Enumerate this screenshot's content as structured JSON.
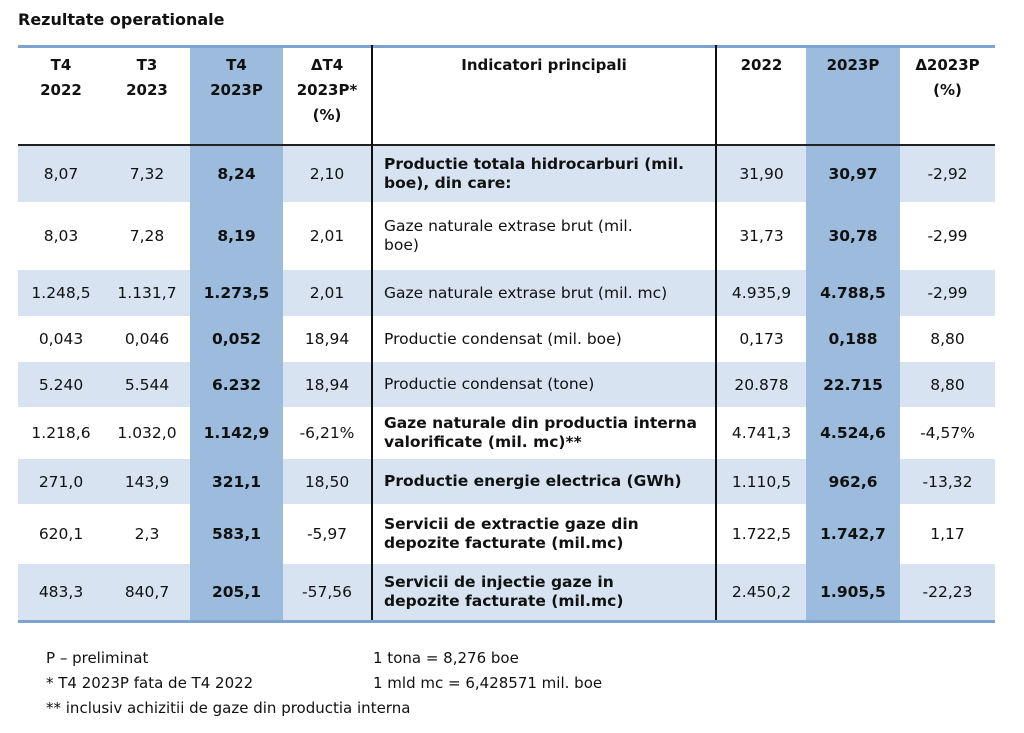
{
  "title": "Rezultate operationale",
  "headers": {
    "t4_2022": [
      "T4",
      "2022"
    ],
    "t3_2023": [
      "T3",
      "2023"
    ],
    "t4_2023p": [
      "T4",
      "2023P"
    ],
    "delta_t4": [
      "ΔT4",
      "2023P*",
      "(%)"
    ],
    "indicator": "Indicatori principali",
    "y2022": "2022",
    "y2023p": "2023P",
    "delta_2023p": [
      "Δ2023P",
      "(%)"
    ]
  },
  "rows": [
    {
      "t4_2022": "8,07",
      "t3_2023": "7,32",
      "t4_2023p": "8,24",
      "delta_t4": "2,10",
      "indicator": [
        "Productie totala hidrocarburi (mil.",
        "boe), din care:"
      ],
      "bold": true,
      "y2022": "31,90",
      "y2023p": "30,97",
      "delta_2023p": "-2,92"
    },
    {
      "t4_2022": "8,03",
      "t3_2023": "7,28",
      "t4_2023p": "8,19",
      "delta_t4": "2,01",
      "indicator": [
        "Gaze naturale extrase brut (mil.",
        "boe)"
      ],
      "bold": false,
      "y2022": "31,73",
      "y2023p": "30,78",
      "delta_2023p": "-2,99"
    },
    {
      "t4_2022": "1.248,5",
      "t3_2023": "1.131,7",
      "t4_2023p": "1.273,5",
      "delta_t4": "2,01",
      "indicator": [
        "Gaze naturale extrase brut (mil. mc)"
      ],
      "bold": false,
      "y2022": "4.935,9",
      "y2023p": "4.788,5",
      "delta_2023p": "-2,99"
    },
    {
      "t4_2022": "0,043",
      "t3_2023": "0,046",
      "t4_2023p": "0,052",
      "delta_t4": "18,94",
      "indicator": [
        "Productie condensat (mil. boe)"
      ],
      "bold": false,
      "y2022": "0,173",
      "y2023p": "0,188",
      "delta_2023p": "8,80"
    },
    {
      "t4_2022": "5.240",
      "t3_2023": "5.544",
      "t4_2023p": "6.232",
      "delta_t4": "18,94",
      "indicator": [
        "Productie condensat (tone)"
      ],
      "bold": false,
      "y2022": "20.878",
      "y2023p": "22.715",
      "delta_2023p": "8,80"
    },
    {
      "t4_2022": "1.218,6",
      "t3_2023": "1.032,0",
      "t4_2023p": "1.142,9",
      "delta_t4": "-6,21%",
      "indicator": [
        "Gaze naturale din productia interna",
        "valorificate (mil. mc)**"
      ],
      "bold": true,
      "y2022": "4.741,3",
      "y2023p": "4.524,6",
      "delta_2023p": "-4,57%"
    },
    {
      "t4_2022": "271,0",
      "t3_2023": "143,9",
      "t4_2023p": "321,1",
      "delta_t4": "18,50",
      "indicator": [
        "Productie energie electrica (GWh)"
      ],
      "bold": true,
      "y2022": "1.110,5",
      "y2023p": "962,6",
      "delta_2023p": "-13,32"
    },
    {
      "t4_2022": "620,1",
      "t3_2023": "2,3",
      "t4_2023p": "583,1",
      "delta_t4": "-5,97",
      "indicator": [
        "Servicii de extractie gaze din",
        "depozite facturate (mil.mc)"
      ],
      "bold": true,
      "y2022": "1.722,5",
      "y2023p": "1.742,7",
      "delta_2023p": "1,17"
    },
    {
      "t4_2022": "483,3",
      "t3_2023": "840,7",
      "t4_2023p": "205,1",
      "delta_t4": "-57,56",
      "indicator": [
        "Servicii de injectie gaze in",
        "depozite facturate (mil.mc)"
      ],
      "bold": true,
      "y2022": "2.450,2",
      "y2023p": "1.905,5",
      "delta_2023p": "-22,23"
    }
  ],
  "notes_left": [
    "P – preliminat",
    "* T4 2023P fata de T4 2022",
    "** inclusiv achizitii de gaze din productia interna"
  ],
  "notes_right": [
    "1 tona = 8,276 boe",
    "1 mld mc = 6,428571 mil. boe"
  ],
  "colors": {
    "highlight": "#9dbbdd",
    "band": "#d7e3f1",
    "rule": "#7ea3cf"
  }
}
